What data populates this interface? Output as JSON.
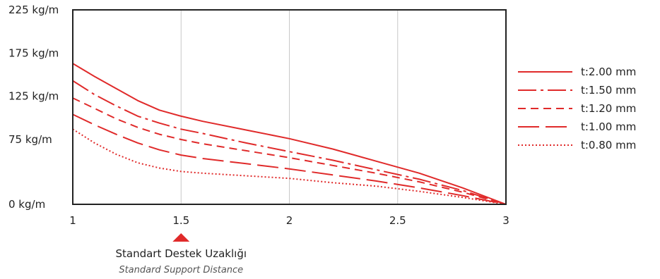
{
  "chart_data": {
    "type": "line",
    "xlim": [
      1,
      3
    ],
    "ylim": [
      0,
      225
    ],
    "x_ticks": [
      1,
      1.5,
      2,
      2.5,
      3
    ],
    "x_tick_labels": [
      "1",
      "1.5",
      "2",
      "2.5",
      "3"
    ],
    "y_ticks": [
      0,
      75,
      125,
      175,
      225
    ],
    "y_tick_labels": [
      "0 kg/m",
      "75 kg/m",
      "125 kg/m",
      "175 kg/m",
      "225 kg/m"
    ],
    "grid": true,
    "legend_position": "right",
    "line_color": "#e02a2a",
    "x": [
      1.0,
      1.1,
      1.2,
      1.3,
      1.4,
      1.5,
      1.6,
      1.8,
      2.0,
      2.2,
      2.4,
      2.6,
      2.8,
      3.0
    ],
    "series": [
      {
        "name": "t:2.00 mm",
        "dash": "solid",
        "values": [
          163,
          148,
          134,
          120,
          109,
          102,
          96,
          86,
          76,
          64,
          50,
          36,
          19,
          0
        ]
      },
      {
        "name": "t:1.50 mm",
        "dash": "dash-dot",
        "values": [
          143,
          127,
          114,
          102,
          94,
          87,
          82,
          71,
          61,
          51,
          40,
          29,
          16,
          0
        ]
      },
      {
        "name": "t:1.20 mm",
        "dash": "dash",
        "values": [
          123,
          111,
          99,
          89,
          81,
          75,
          70,
          62,
          54,
          45,
          36,
          26,
          14,
          0
        ]
      },
      {
        "name": "t:1.00 mm",
        "dash": "long-dash",
        "values": [
          104,
          92,
          81,
          71,
          63,
          57,
          53,
          47,
          41,
          34,
          27,
          19,
          10,
          0
        ]
      },
      {
        "name": "t:0.80 mm",
        "dash": "dot",
        "values": [
          87,
          71,
          58,
          48,
          42,
          38,
          36,
          33,
          30,
          25,
          21,
          15,
          8,
          0
        ]
      }
    ],
    "annotation": {
      "x": 1.5,
      "label": "Standart Destek Uzaklığı",
      "sublabel": "Standard Support Distance"
    }
  }
}
